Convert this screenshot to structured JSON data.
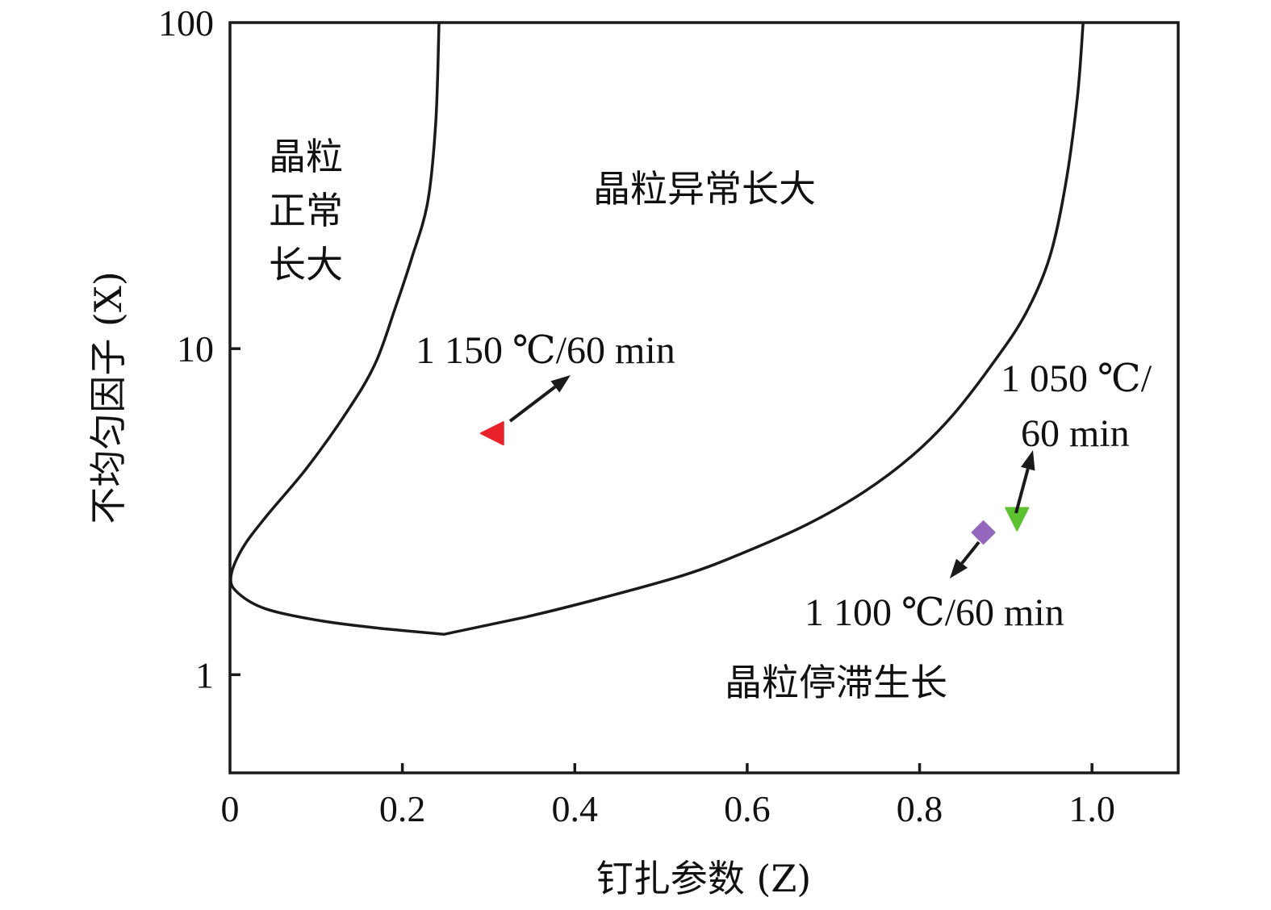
{
  "chart_data": {
    "type": "line",
    "xlabel": "钉扎参数 (Z)",
    "ylabel": "不均匀因子 (X)",
    "xlim": [
      0,
      1.1
    ],
    "ylim": [
      0.5,
      100
    ],
    "yscale": "log",
    "grid": false,
    "x_ticks": [
      0,
      0.2,
      0.4,
      0.6,
      0.8,
      1.0
    ],
    "x_tick_labels": [
      "0",
      "0.2",
      "0.4",
      "0.6",
      "0.8",
      "1.0"
    ],
    "y_ticks": [
      1,
      10,
      100
    ],
    "y_tick_labels": [
      "1",
      "10",
      "100"
    ],
    "boundary": {
      "color": "#1a1a1a",
      "x": [
        0.2425,
        0.2388,
        0.2294,
        0.2107,
        0.192,
        0.1685,
        0.1358,
        0.089,
        0.0421,
        0.014,
        0.001,
        0.0094,
        0.0421,
        0.1077,
        0.1826,
        0.2481,
        0.3418,
        0.4354,
        0.529,
        0.5946,
        0.6695,
        0.735,
        0.7912,
        0.838,
        0.8848,
        0.9223,
        0.9504,
        0.9691,
        0.9831,
        0.9897
      ],
      "y": [
        100,
        49.9,
        28.2,
        18.9,
        13.4,
        9.0,
        6.41,
        4.3,
        3.06,
        2.43,
        1.99,
        1.78,
        1.59,
        1.46,
        1.38,
        1.33,
        1.5,
        1.73,
        2.03,
        2.36,
        2.89,
        3.63,
        4.69,
        6.23,
        9.0,
        12.7,
        18.9,
        31.6,
        59.2,
        100
      ]
    },
    "points": [
      {
        "label": "1 150 ℃/60 min",
        "x": 0.304,
        "y": 5.5,
        "marker": "triangle-left",
        "color": "#e8232a"
      },
      {
        "label": "1 100 ℃/60 min",
        "x": 0.874,
        "y": 2.73,
        "marker": "diamond",
        "color": "#9467bd"
      },
      {
        "label": "1 050 ℃/60 min",
        "label_lines": [
          "1 050 ℃/",
          "60 min"
        ],
        "x": 0.913,
        "y": 3.0,
        "marker": "triangle-down",
        "color": "#5cc232"
      }
    ],
    "region_labels": {
      "normal": [
        "晶粒",
        "正常",
        "长大"
      ],
      "abnormal": "晶粒异常长大",
      "stagnant": "晶粒停滞生长"
    }
  }
}
